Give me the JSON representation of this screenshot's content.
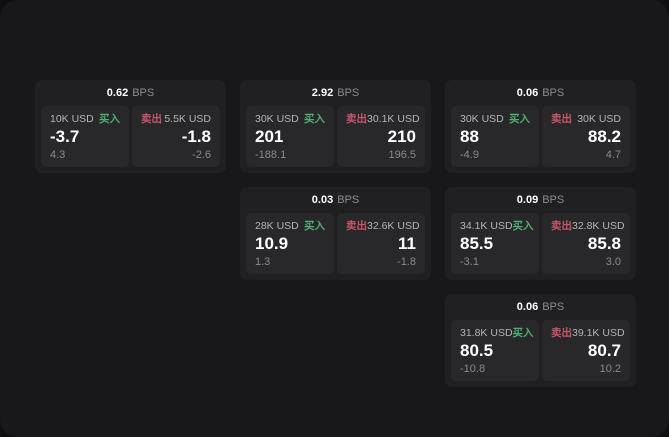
{
  "labels": {
    "buy": "买入",
    "sell": "卖出",
    "bps_suffix": "BPS"
  },
  "colors": {
    "buy_green": "#4fae6e",
    "sell_red": "#c45668",
    "canvas_bg": "#18181a",
    "card_bg": "#202023",
    "panel_bg": "#28282b"
  },
  "cards": [
    {
      "bps": "0.62",
      "row": 1,
      "col": 1,
      "buy": {
        "size": "10K USD",
        "value": "-3.7",
        "delta": "4.3"
      },
      "sell": {
        "size": "5.5K USD",
        "value": "-1.8",
        "delta": "-2.6"
      }
    },
    {
      "bps": "2.92",
      "row": 1,
      "col": 2,
      "buy": {
        "size": "30K USD",
        "value": "201",
        "delta": "-188.1"
      },
      "sell": {
        "size": "30.1K USD",
        "value": "210",
        "delta": "196.5"
      }
    },
    {
      "bps": "0.06",
      "row": 1,
      "col": 3,
      "buy": {
        "size": "30K USD",
        "value": "88",
        "delta": "-4.9"
      },
      "sell": {
        "size": "30K USD",
        "value": "88.2",
        "delta": "4.7"
      }
    },
    {
      "bps": "0.03",
      "row": 2,
      "col": 2,
      "buy": {
        "size": "28K USD",
        "value": "10.9",
        "delta": "1.3"
      },
      "sell": {
        "size": "32.6K USD",
        "value": "11",
        "delta": "-1.8"
      }
    },
    {
      "bps": "0.09",
      "row": 2,
      "col": 3,
      "buy": {
        "size": "34.1K USD",
        "value": "85.5",
        "delta": "-3.1"
      },
      "sell": {
        "size": "32.8K USD",
        "value": "85.8",
        "delta": "3.0"
      }
    },
    {
      "bps": "0.06",
      "row": 3,
      "col": 3,
      "buy": {
        "size": "31.8K USD",
        "value": "80.5",
        "delta": "-10.8"
      },
      "sell": {
        "size": "39.1K USD",
        "value": "80.7",
        "delta": "10.2"
      }
    }
  ]
}
